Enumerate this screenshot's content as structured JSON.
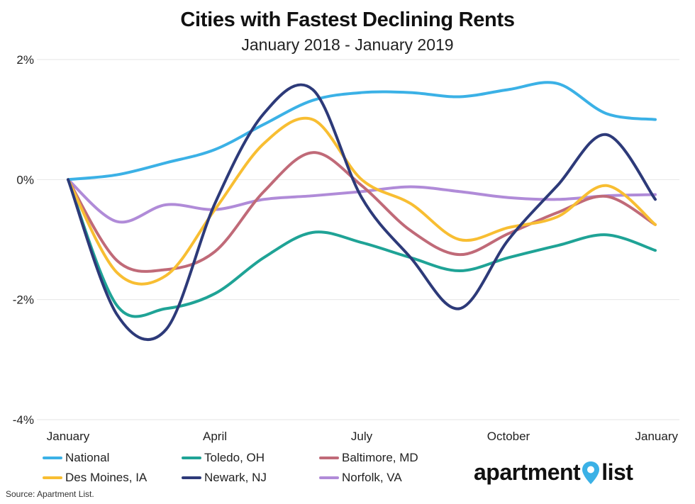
{
  "header": {
    "title": "Cities with Fastest Declining Rents",
    "subtitle": "January 2018 - January 2019"
  },
  "source": "Source: Apartment List.",
  "brand": {
    "part1": "apartment",
    "part2": "list",
    "icon": "map-pin-icon",
    "accent": "#3bb1e6"
  },
  "chart_data": {
    "type": "line",
    "x_ticks": [
      "January",
      "April",
      "July",
      "October",
      "January"
    ],
    "x_tick_months": [
      0,
      3,
      6,
      9,
      12
    ],
    "y_ticks": [
      "2%",
      "0%",
      "-2%",
      "-4%"
    ],
    "y_tick_values": [
      2,
      0,
      -2,
      -4
    ],
    "ylim": [
      -4,
      2
    ],
    "xlim": [
      0,
      12
    ],
    "grid": "horizontal",
    "legend_position": "bottom-left",
    "x": [
      0,
      1,
      2,
      3,
      4,
      5,
      6,
      7,
      8,
      9,
      10,
      11,
      12
    ],
    "series": [
      {
        "name": "National",
        "color": "#3bb1e6",
        "values": [
          0.0,
          0.08,
          0.28,
          0.5,
          0.92,
          1.32,
          1.45,
          1.45,
          1.38,
          1.5,
          1.6,
          1.1,
          1.0
        ]
      },
      {
        "name": "Toledo, OH",
        "color": "#1fa396",
        "values": [
          0.0,
          -2.1,
          -2.15,
          -1.9,
          -1.3,
          -0.88,
          -1.05,
          -1.3,
          -1.52,
          -1.3,
          -1.1,
          -0.92,
          -1.18
        ]
      },
      {
        "name": "Baltimore, MD",
        "color": "#c06a78",
        "values": [
          0.0,
          -1.35,
          -1.5,
          -1.2,
          -0.2,
          0.45,
          -0.1,
          -0.85,
          -1.25,
          -0.9,
          -0.55,
          -0.28,
          -0.75
        ]
      },
      {
        "name": "Des Moines, IA",
        "color": "#f8be32",
        "values": [
          0.0,
          -1.55,
          -1.6,
          -0.5,
          0.6,
          1.0,
          0.0,
          -0.4,
          -1.0,
          -0.8,
          -0.62,
          -0.1,
          -0.75
        ]
      },
      {
        "name": "Newark, NJ",
        "color": "#2d3a79",
        "values": [
          0.0,
          -2.25,
          -2.5,
          -0.4,
          1.1,
          1.5,
          -0.3,
          -1.3,
          -2.15,
          -1.0,
          -0.1,
          0.75,
          -0.33
        ]
      },
      {
        "name": "Norfolk, VA",
        "color": "#b08bd8",
        "values": [
          0.0,
          -0.7,
          -0.42,
          -0.5,
          -0.33,
          -0.27,
          -0.2,
          -0.12,
          -0.2,
          -0.3,
          -0.33,
          -0.27,
          -0.25
        ]
      }
    ]
  }
}
